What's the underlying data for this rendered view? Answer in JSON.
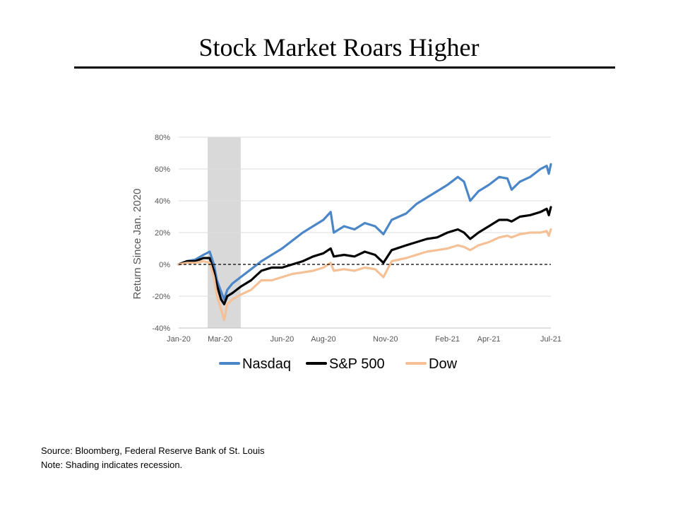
{
  "title": "Stock Market Roars Higher",
  "source": "Source: Bloomberg, Federal Reserve Bank of St. Louis",
  "note": "Note: Shading indicates recession.",
  "chart_data": {
    "type": "line",
    "ylabel": "Return Since Jan. 2020",
    "ylim": [
      -40,
      80
    ],
    "y_ticks": [
      "80%",
      "60%",
      "40%",
      "20%",
      "0%",
      "-20%",
      "-40%"
    ],
    "y_tick_values": [
      80,
      60,
      40,
      20,
      0,
      -20,
      -40
    ],
    "x_ticks": [
      "Jan-20",
      "Mar-20",
      "Jun-20",
      "Aug-20",
      "Nov-20",
      "Feb-21",
      "Apr-21",
      "Jul-21"
    ],
    "x_tick_values": [
      0,
      2,
      5,
      7,
      10,
      13,
      15,
      18
    ],
    "xlim": [
      0,
      18
    ],
    "recession": [
      1.4,
      3.0
    ],
    "zero_line": "dashed",
    "grid": true,
    "legend_position": "bottom",
    "series": [
      {
        "name": "Nasdaq",
        "color": "#4A86C8",
        "points": [
          [
            0,
            0
          ],
          [
            0.4,
            2
          ],
          [
            0.8,
            3
          ],
          [
            1.2,
            6
          ],
          [
            1.5,
            8
          ],
          [
            1.7,
            0
          ],
          [
            1.85,
            -10
          ],
          [
            2.05,
            -17
          ],
          [
            2.2,
            -22
          ],
          [
            2.35,
            -16
          ],
          [
            2.6,
            -12
          ],
          [
            3,
            -8
          ],
          [
            3.5,
            -3
          ],
          [
            4,
            2
          ],
          [
            4.5,
            6
          ],
          [
            5,
            10
          ],
          [
            5.5,
            15
          ],
          [
            6,
            20
          ],
          [
            6.5,
            24
          ],
          [
            7,
            28
          ],
          [
            7.35,
            33
          ],
          [
            7.5,
            20
          ],
          [
            8,
            24
          ],
          [
            8.5,
            22
          ],
          [
            9,
            26
          ],
          [
            9.5,
            24
          ],
          [
            9.9,
            19
          ],
          [
            10.3,
            28
          ],
          [
            11,
            32
          ],
          [
            11.5,
            38
          ],
          [
            12,
            42
          ],
          [
            12.5,
            46
          ],
          [
            13,
            50
          ],
          [
            13.5,
            55
          ],
          [
            13.8,
            52
          ],
          [
            14.1,
            40
          ],
          [
            14.5,
            46
          ],
          [
            15,
            50
          ],
          [
            15.5,
            55
          ],
          [
            15.9,
            54
          ],
          [
            16.1,
            47
          ],
          [
            16.5,
            52
          ],
          [
            17,
            55
          ],
          [
            17.5,
            60
          ],
          [
            17.8,
            62
          ],
          [
            17.9,
            57
          ],
          [
            18,
            63
          ]
        ]
      },
      {
        "name": "S&P 500",
        "color": "#000000",
        "points": [
          [
            0,
            0
          ],
          [
            0.4,
            2
          ],
          [
            0.8,
            2
          ],
          [
            1.2,
            4
          ],
          [
            1.5,
            4
          ],
          [
            1.7,
            -4
          ],
          [
            1.85,
            -13
          ],
          [
            2.05,
            -22
          ],
          [
            2.2,
            -25
          ],
          [
            2.35,
            -20
          ],
          [
            2.6,
            -18
          ],
          [
            3,
            -14
          ],
          [
            3.5,
            -10
          ],
          [
            4,
            -4
          ],
          [
            4.5,
            -2
          ],
          [
            5,
            -2
          ],
          [
            5.5,
            0
          ],
          [
            6,
            2
          ],
          [
            6.5,
            5
          ],
          [
            7,
            7
          ],
          [
            7.35,
            10
          ],
          [
            7.5,
            5
          ],
          [
            8,
            6
          ],
          [
            8.5,
            5
          ],
          [
            9,
            8
          ],
          [
            9.5,
            6
          ],
          [
            9.9,
            1
          ],
          [
            10.3,
            9
          ],
          [
            11,
            12
          ],
          [
            11.5,
            14
          ],
          [
            12,
            16
          ],
          [
            12.5,
            17
          ],
          [
            13,
            20
          ],
          [
            13.5,
            22
          ],
          [
            13.8,
            20
          ],
          [
            14.1,
            16
          ],
          [
            14.5,
            20
          ],
          [
            15,
            24
          ],
          [
            15.5,
            28
          ],
          [
            15.9,
            28
          ],
          [
            16.1,
            27
          ],
          [
            16.5,
            30
          ],
          [
            17,
            31
          ],
          [
            17.5,
            33
          ],
          [
            17.8,
            35
          ],
          [
            17.9,
            31
          ],
          [
            18,
            36
          ]
        ]
      },
      {
        "name": "Dow",
        "color": "#F5C095",
        "points": [
          [
            0,
            0
          ],
          [
            0.4,
            1
          ],
          [
            0.8,
            1
          ],
          [
            1.2,
            2
          ],
          [
            1.5,
            1
          ],
          [
            1.7,
            -8
          ],
          [
            1.85,
            -20
          ],
          [
            2.05,
            -28
          ],
          [
            2.2,
            -35
          ],
          [
            2.35,
            -25
          ],
          [
            2.6,
            -22
          ],
          [
            3,
            -19
          ],
          [
            3.5,
            -16
          ],
          [
            4,
            -10
          ],
          [
            4.5,
            -10
          ],
          [
            5,
            -8
          ],
          [
            5.5,
            -6
          ],
          [
            6,
            -5
          ],
          [
            6.5,
            -4
          ],
          [
            7,
            -2
          ],
          [
            7.35,
            1
          ],
          [
            7.5,
            -4
          ],
          [
            8,
            -3
          ],
          [
            8.5,
            -4
          ],
          [
            9,
            -2
          ],
          [
            9.5,
            -3
          ],
          [
            9.9,
            -8
          ],
          [
            10.3,
            2
          ],
          [
            11,
            4
          ],
          [
            11.5,
            6
          ],
          [
            12,
            8
          ],
          [
            12.5,
            9
          ],
          [
            13,
            10
          ],
          [
            13.5,
            12
          ],
          [
            13.8,
            11
          ],
          [
            14.1,
            9
          ],
          [
            14.5,
            12
          ],
          [
            15,
            14
          ],
          [
            15.5,
            17
          ],
          [
            15.9,
            18
          ],
          [
            16.1,
            17
          ],
          [
            16.5,
            19
          ],
          [
            17,
            20
          ],
          [
            17.5,
            20
          ],
          [
            17.8,
            21
          ],
          [
            17.9,
            18
          ],
          [
            18,
            22
          ]
        ]
      }
    ]
  }
}
